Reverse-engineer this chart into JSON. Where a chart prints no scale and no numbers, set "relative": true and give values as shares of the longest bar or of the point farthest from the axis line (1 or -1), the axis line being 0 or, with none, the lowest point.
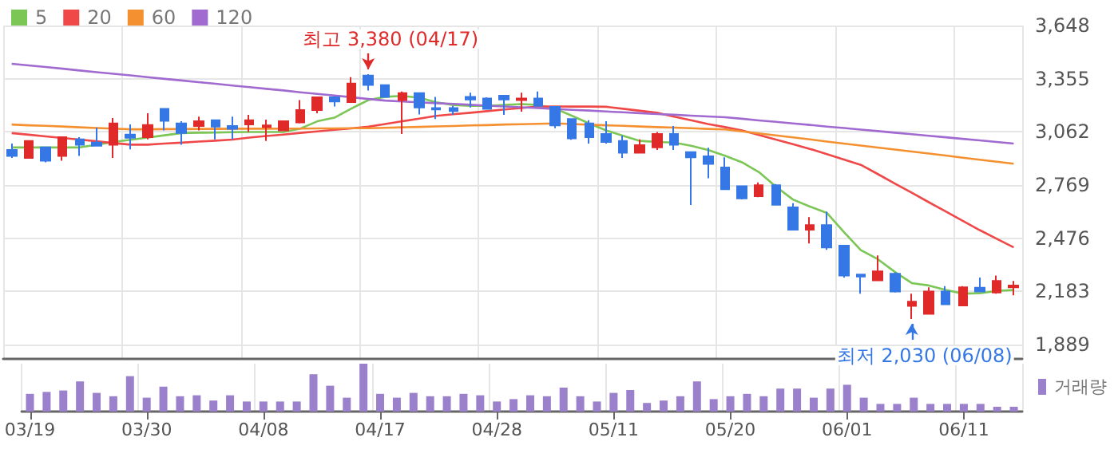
{
  "chart_data": [
    {
      "type": "candlestick",
      "categories": [
        null,
        null,
        null,
        null,
        null,
        null,
        null,
        null,
        null,
        null,
        null,
        null,
        null,
        null,
        null,
        null,
        null,
        null,
        null,
        null,
        null,
        null,
        null,
        null,
        null,
        null,
        null,
        null,
        null,
        null,
        null,
        null,
        null,
        null,
        null,
        null,
        null,
        null,
        null,
        null,
        null,
        null,
        null,
        null,
        null,
        null,
        null,
        null,
        null,
        null,
        null,
        null,
        null,
        null,
        null,
        null,
        null,
        null,
        null,
        null
      ],
      "ohlc": [
        [
          2962,
          2997,
          2918,
          2929
        ],
        [
          2918,
          3012,
          2918,
          3012
        ],
        [
          2976,
          2976,
          2894,
          2903
        ],
        [
          2929,
          3032,
          2903,
          3032
        ],
        [
          3020,
          3032,
          2929,
          2991
        ],
        [
          3003,
          3085,
          2985,
          2985
        ],
        [
          2991,
          3138,
          2918,
          3108
        ],
        [
          3047,
          3103,
          2965,
          3029
        ],
        [
          3032,
          3164,
          3020,
          3100
        ],
        [
          3188,
          3188,
          3070,
          3123
        ],
        [
          3108,
          3120,
          2991,
          3055
        ],
        [
          3094,
          3146,
          3070,
          3120
        ],
        [
          3126,
          3126,
          3020,
          3091
        ],
        [
          3094,
          3146,
          3020,
          3079
        ],
        [
          3103,
          3155,
          3061,
          3126
        ],
        [
          3088,
          3129,
          3012,
          3097
        ],
        [
          3070,
          3120,
          3070,
          3120
        ],
        [
          3114,
          3237,
          3108,
          3182
        ],
        [
          3182,
          3252,
          3164,
          3252
        ],
        [
          3252,
          3252,
          3202,
          3229
        ],
        [
          3226,
          3363,
          3226,
          3328
        ],
        [
          3372,
          3380,
          3290,
          3320
        ],
        [
          3319,
          3319,
          3255,
          3255
        ],
        [
          3237,
          3284,
          3050,
          3275
        ],
        [
          3275,
          3275,
          3158,
          3196
        ],
        [
          3193,
          3255,
          3132,
          3185
        ],
        [
          3193,
          3205,
          3155,
          3176
        ],
        [
          3255,
          3278,
          3196,
          3240
        ],
        [
          3246,
          3252,
          3185,
          3188
        ],
        [
          3261,
          3261,
          3155,
          3240
        ],
        [
          3237,
          3278,
          3173,
          3246
        ],
        [
          3246,
          3284,
          3205,
          3205
        ],
        [
          3199,
          3202,
          3082,
          3097
        ],
        [
          3132,
          3132,
          3018,
          3026
        ],
        [
          3108,
          3126,
          2997,
          3032
        ],
        [
          3050,
          3120,
          2997,
          3006
        ],
        [
          3012,
          3041,
          2918,
          2947
        ],
        [
          2947,
          3020,
          2947,
          2988
        ],
        [
          2976,
          3061,
          2962,
          3050
        ],
        [
          3050,
          3094,
          2962,
          2991
        ],
        [
          2950,
          2950,
          2659,
          2921
        ],
        [
          2927,
          2974,
          2806,
          2885
        ],
        [
          2865,
          2921,
          2745,
          2745
        ],
        [
          2762,
          2762,
          2689,
          2695
        ],
        [
          2707,
          2783,
          2701,
          2768
        ],
        [
          2768,
          2774,
          2660,
          2660
        ],
        [
          2645,
          2668,
          2522,
          2522
        ],
        [
          2522,
          2592,
          2446,
          2548
        ],
        [
          2548,
          2621,
          2411,
          2425
        ],
        [
          2434,
          2434,
          2258,
          2270
        ],
        [
          2275,
          2275,
          2170,
          2264
        ],
        [
          2243,
          2381,
          2243,
          2293
        ],
        [
          2279,
          2287,
          2176,
          2182
        ],
        [
          2102,
          2170,
          2030,
          2126
        ],
        [
          2058,
          2205,
          2058,
          2182
        ],
        [
          2182,
          2211,
          2111,
          2111
        ],
        [
          2105,
          2211,
          2105,
          2205
        ],
        [
          2202,
          2258,
          2182,
          2182
        ],
        [
          2176,
          2270,
          2170,
          2240
        ],
        [
          2205,
          2240,
          2161,
          2214
        ]
      ],
      "series": [
        {
          "name": "5",
          "type": "line",
          "color": "#7cc656",
          "values": [
            2976,
            2976,
            2976,
            2976,
            2976,
            2991,
            3006,
            3018,
            3030,
            3043,
            3055,
            3057,
            3058,
            3060,
            3061,
            3061,
            3061,
            3080,
            3120,
            3140,
            3190,
            3237,
            3255,
            3260,
            3250,
            3225,
            3210,
            3205,
            3205,
            3210,
            3215,
            3210,
            3190,
            3150,
            3108,
            3070,
            3040,
            3012,
            3006,
            3003,
            2985,
            2962,
            2930,
            2894,
            2840,
            2760,
            2689,
            2650,
            2615,
            2510,
            2410,
            2360,
            2290,
            2228,
            2215,
            2190,
            2170,
            2172,
            2185,
            2190
          ]
        },
        {
          "name": "20",
          "type": "line",
          "color": "#f04848",
          "values": [
            3055,
            3046,
            3037,
            3028,
            3019,
            3010,
            3000,
            2991,
            2991,
            2997,
            3002,
            3008,
            3013,
            3019,
            3030,
            3039,
            3047,
            3056,
            3064,
            3073,
            3081,
            3090,
            3105,
            3120,
            3135,
            3150,
            3159,
            3167,
            3176,
            3185,
            3193,
            3202,
            3202,
            3201,
            3201,
            3200,
            3189,
            3178,
            3167,
            3146,
            3126,
            3105,
            3088,
            3070,
            3045,
            3019,
            2994,
            2968,
            2939,
            2909,
            2880,
            2829,
            2777,
            2726,
            2674,
            2623,
            2571,
            2520,
            2472,
            2425
          ]
        },
        {
          "name": "60",
          "type": "line",
          "color": "#f59030",
          "values": [
            3102,
            3098,
            3095,
            3091,
            3087,
            3083,
            3080,
            3076,
            3076,
            3077,
            3077,
            3078,
            3078,
            3079,
            3079,
            3079,
            3080,
            3080,
            3081,
            3081,
            3082,
            3082,
            3084,
            3087,
            3089,
            3092,
            3094,
            3097,
            3099,
            3102,
            3104,
            3106,
            3108,
            3105,
            3101,
            3098,
            3095,
            3091,
            3088,
            3085,
            3082,
            3078,
            3075,
            3064,
            3053,
            3042,
            3031,
            3020,
            3008,
            2997,
            2986,
            2975,
            2964,
            2953,
            2942,
            2931,
            2919,
            2908,
            2897,
            2886
          ]
        },
        {
          "name": "120",
          "type": "line",
          "color": "#a06ad0",
          "values": [
            3437,
            3428,
            3419,
            3410,
            3400,
            3391,
            3382,
            3373,
            3363,
            3354,
            3345,
            3336,
            3327,
            3317,
            3308,
            3299,
            3290,
            3280,
            3271,
            3262,
            3253,
            3243,
            3234,
            3229,
            3225,
            3220,
            3216,
            3211,
            3206,
            3202,
            3197,
            3193,
            3188,
            3183,
            3179,
            3174,
            3170,
            3165,
            3160,
            3156,
            3151,
            3147,
            3142,
            3134,
            3125,
            3117,
            3108,
            3100,
            3091,
            3083,
            3074,
            3066,
            3057,
            3049,
            3040,
            3032,
            3023,
            3015,
            3006,
            2997
          ]
        }
      ],
      "ylim": [
        1810,
        3648
      ],
      "yticks": [
        {
          "value": 1889,
          "label": "1,889"
        },
        {
          "value": 2183,
          "label": "2,183"
        },
        {
          "value": 2476,
          "label": "2,476"
        },
        {
          "value": 2769,
          "label": "2,769"
        },
        {
          "value": 3062,
          "label": "3,062"
        },
        {
          "value": 3355,
          "label": "3,355"
        },
        {
          "value": 3648,
          "label": "3,648"
        }
      ],
      "annotations": [
        "최고 3,380 (04/17)",
        "최저 2,030 (06/08)"
      ],
      "grid": true,
      "legend": "top left",
      "tick_labels": "y"
    },
    {
      "type": "bar",
      "relative": true,
      "categories": [
        "03/19",
        null,
        null,
        null,
        null,
        null,
        null,
        "03/30",
        null,
        null,
        null,
        null,
        null,
        null,
        "04/08",
        null,
        null,
        null,
        null,
        null,
        null,
        "04/17",
        null,
        null,
        null,
        null,
        null,
        null,
        "04/28",
        null,
        null,
        null,
        null,
        null,
        null,
        "05/11",
        null,
        null,
        null,
        null,
        null,
        null,
        "05/20",
        null,
        null,
        null,
        null,
        null,
        null,
        "06/01",
        null,
        null,
        null,
        null,
        null,
        null,
        "06/11",
        null,
        null,
        null
      ],
      "series": [
        {
          "name": "거래량",
          "color": "#9b80cc",
          "values": [
            0.37,
            0.41,
            0.44,
            0.63,
            0.39,
            0.32,
            0.74,
            0.29,
            0.52,
            0.32,
            0.34,
            0.23,
            0.34,
            0.21,
            0.21,
            0.21,
            0.21,
            0.78,
            0.54,
            0.29,
            1,
            0.37,
            0.29,
            0.39,
            0.32,
            0.32,
            0.37,
            0.34,
            0.21,
            0.26,
            0.34,
            0.32,
            0.5,
            0.32,
            0.21,
            0.39,
            0.45,
            0.18,
            0.23,
            0.32,
            0.63,
            0.26,
            0.32,
            0.37,
            0.32,
            0.48,
            0.48,
            0.29,
            0.48,
            0.56,
            0.29,
            0.16,
            0.16,
            0.29,
            0.16,
            0.16,
            0.16,
            0.16,
            0.1,
            0.1
          ]
        }
      ],
      "grid": "x",
      "legend": "top right",
      "tick_labels": "x"
    }
  ]
}
